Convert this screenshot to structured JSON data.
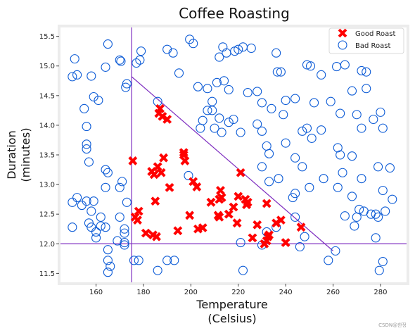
{
  "chart_data": {
    "type": "scatter",
    "title": "Coffee Roasting",
    "xlabel_lines": [
      "Temperature",
      "(Celsius)"
    ],
    "ylabel_lines": [
      "Duration",
      "(minutes)"
    ],
    "xlim": [
      145,
      291
    ],
    "ylim": [
      11.35,
      15.65
    ],
    "xticks": [
      160,
      180,
      200,
      220,
      240,
      260,
      280
    ],
    "yticks": [
      11.5,
      12.0,
      12.5,
      13.0,
      13.5,
      14.0,
      14.5,
      15.0,
      15.5
    ],
    "ytick_labels": [
      "11.5",
      "12.0",
      "12.5",
      "13.0",
      "13.5",
      "14.0",
      "14.5",
      "15.0",
      "15.5"
    ],
    "legend_position": "top-right",
    "grid": false,
    "colors": {
      "good": "#ff0000",
      "bad": "#0c5bd6",
      "lines": "#7f2fc0",
      "frame": "#ececec"
    },
    "reference_lines": [
      {
        "orientation": "vertical",
        "x": 175
      },
      {
        "orientation": "horizontal",
        "y": 12.0
      },
      {
        "orientation": "diagonal",
        "from": [
          175,
          14.82
        ],
        "to": [
          260,
          11.88
        ]
      }
    ],
    "series": [
      {
        "name": "Good Roast",
        "marker": "x",
        "points": [
          [
            175.5,
            13.4
          ],
          [
            186.5,
            14.2
          ],
          [
            187,
            14.28
          ],
          [
            188,
            14.15
          ],
          [
            190,
            14.1
          ],
          [
            178,
            12.55
          ],
          [
            176.5,
            12.45
          ],
          [
            177.5,
            12.4
          ],
          [
            185,
            12.72
          ],
          [
            188.5,
            13.45
          ],
          [
            183.5,
            13.22
          ],
          [
            184.5,
            13.17
          ],
          [
            187.5,
            13.2
          ],
          [
            186,
            13.3
          ],
          [
            191,
            12.95
          ],
          [
            184,
            12.15
          ],
          [
            185.5,
            12.12
          ],
          [
            181,
            12.18
          ],
          [
            194.5,
            12.22
          ],
          [
            197,
            13.5
          ],
          [
            197,
            13.54
          ],
          [
            197.5,
            13.4
          ],
          [
            199.5,
            12.48
          ],
          [
            201,
            13.05
          ],
          [
            202.5,
            12.96
          ],
          [
            203,
            12.25
          ],
          [
            205,
            12.27
          ],
          [
            208.5,
            12.7
          ],
          [
            211.5,
            12.48
          ],
          [
            212.5,
            12.9
          ],
          [
            212,
            12.75
          ],
          [
            213,
            12.78
          ],
          [
            216,
            12.5
          ],
          [
            218,
            12.62
          ],
          [
            219.5,
            12.35
          ],
          [
            220,
            12.8
          ],
          [
            221,
            13.2
          ],
          [
            223,
            12.75
          ],
          [
            224,
            12.7
          ],
          [
            226,
            12.1
          ],
          [
            228,
            12.32
          ],
          [
            231,
            12.0
          ],
          [
            232,
            12.68
          ],
          [
            232.5,
            12.12
          ],
          [
            233,
            12.15
          ],
          [
            236,
            12.35
          ],
          [
            238,
            12.4
          ],
          [
            240,
            12.02
          ],
          [
            246.5,
            12.28
          ],
          [
            212,
            12.45
          ],
          [
            223.5,
            12.66
          ],
          [
            232,
            12.05
          ]
        ]
      },
      {
        "name": "Bad Roast",
        "marker": "o",
        "points": [
          [
            151,
            15.12
          ],
          [
            150,
            14.82
          ],
          [
            152,
            14.85
          ],
          [
            155,
            14.28
          ],
          [
            158,
            14.83
          ],
          [
            165,
            15.37
          ],
          [
            170.5,
            15.08
          ],
          [
            172.5,
            14.64
          ],
          [
            173,
            14.7
          ],
          [
            177,
            15.05
          ],
          [
            178.5,
            15.1
          ],
          [
            179,
            15.25
          ],
          [
            190,
            15.28
          ],
          [
            192.5,
            15.22
          ],
          [
            199.5,
            15.45
          ],
          [
            201,
            15.38
          ],
          [
            212,
            15.15
          ],
          [
            213.5,
            15.32
          ],
          [
            215,
            15.22
          ],
          [
            218.5,
            15.25
          ],
          [
            220,
            15.28
          ],
          [
            222,
            15.32
          ],
          [
            225.5,
            15.3
          ],
          [
            236,
            15.22
          ],
          [
            236.5,
            14.9
          ],
          [
            238,
            14.9
          ],
          [
            249,
            15.02
          ],
          [
            250.5,
            15.0
          ],
          [
            261.5,
            14.99
          ],
          [
            265,
            15.02
          ],
          [
            272,
            14.92
          ],
          [
            274,
            14.9
          ],
          [
            274.5,
            15.32
          ],
          [
            261.5,
            15.35
          ],
          [
            159,
            14.48
          ],
          [
            161,
            14.42
          ],
          [
            164,
            14.98
          ],
          [
            170,
            15.1
          ],
          [
            186,
            14.4
          ],
          [
            195,
            14.88
          ],
          [
            203,
            14.65
          ],
          [
            207,
            14.62
          ],
          [
            209,
            14.4
          ],
          [
            211,
            14.72
          ],
          [
            214,
            14.75
          ],
          [
            216,
            14.6
          ],
          [
            224,
            14.55
          ],
          [
            228,
            14.57
          ],
          [
            230,
            14.38
          ],
          [
            234,
            14.28
          ],
          [
            239,
            14.18
          ],
          [
            240,
            14.42
          ],
          [
            244,
            14.45
          ],
          [
            247,
            13.9
          ],
          [
            252,
            14.38
          ],
          [
            255,
            14.85
          ],
          [
            259,
            14.4
          ],
          [
            263,
            14.2
          ],
          [
            268,
            14.58
          ],
          [
            270,
            14.18
          ],
          [
            272,
            13.95
          ],
          [
            274,
            14.62
          ],
          [
            277,
            14.1
          ],
          [
            280,
            14.22
          ],
          [
            281,
            13.95
          ],
          [
            212,
            14.12
          ],
          [
            209,
            14.25
          ],
          [
            210,
            13.95
          ],
          [
            207,
            14.25
          ],
          [
            205,
            14.08
          ],
          [
            204,
            13.95
          ],
          [
            213,
            13.88
          ],
          [
            216,
            14.05
          ],
          [
            218,
            14.1
          ],
          [
            221,
            13.88
          ],
          [
            228,
            14.02
          ],
          [
            230,
            13.9
          ],
          [
            232,
            13.65
          ],
          [
            240,
            13.7
          ],
          [
            244,
            13.45
          ],
          [
            247,
            13.3
          ],
          [
            249,
            13.95
          ],
          [
            251,
            13.78
          ],
          [
            255,
            13.92
          ],
          [
            262,
            13.62
          ],
          [
            263,
            13.5
          ],
          [
            264,
            13.2
          ],
          [
            268,
            13.48
          ],
          [
            272,
            13.1
          ],
          [
            279,
            13.3
          ],
          [
            284,
            13.28
          ],
          [
            281,
            12.9
          ],
          [
            285,
            12.75
          ],
          [
            282,
            12.55
          ],
          [
            278,
            12.5
          ],
          [
            271,
            12.58
          ],
          [
            265,
            12.47
          ],
          [
            269,
            12.3
          ],
          [
            270,
            12.45
          ],
          [
            273,
            12.55
          ],
          [
            276,
            12.5
          ],
          [
            279,
            12.45
          ],
          [
            278,
            12.1
          ],
          [
            281,
            11.7
          ],
          [
            279.5,
            11.55
          ],
          [
            268,
            12.8
          ],
          [
            262,
            12.95
          ],
          [
            256,
            13.1
          ],
          [
            250,
            12.95
          ],
          [
            244,
            12.85
          ],
          [
            237,
            13.1
          ],
          [
            233,
            13.05
          ],
          [
            230,
            13.3
          ],
          [
            233,
            13.52
          ],
          [
            243,
            12.78
          ],
          [
            236,
            12.28
          ],
          [
            232,
            12.2
          ],
          [
            230,
            11.98
          ],
          [
            244,
            12.45
          ],
          [
            246,
            11.95
          ],
          [
            248,
            12.12
          ],
          [
            258,
            11.72
          ],
          [
            261,
            11.88
          ],
          [
            222,
            11.55
          ],
          [
            221,
            12.02
          ],
          [
            190,
            11.72
          ],
          [
            193,
            11.72
          ],
          [
            186,
            11.55
          ],
          [
            178,
            11.72
          ],
          [
            176,
            11.72
          ],
          [
            172,
            11.98
          ],
          [
            172,
            12.18
          ],
          [
            172,
            12.25
          ],
          [
            170,
            12.45
          ],
          [
            173,
            12.7
          ],
          [
            170,
            12.95
          ],
          [
            171,
            13.05
          ],
          [
            164,
            13.25
          ],
          [
            164,
            12.95
          ],
          [
            162,
            12.45
          ],
          [
            164,
            12.28
          ],
          [
            160,
            12.2
          ],
          [
            158,
            12.28
          ],
          [
            157,
            12.35
          ],
          [
            158,
            12.55
          ],
          [
            159,
            12.72
          ],
          [
            156,
            12.72
          ],
          [
            154,
            12.65
          ],
          [
            152,
            12.78
          ],
          [
            150,
            12.7
          ],
          [
            150,
            12.28
          ],
          [
            156,
            13.6
          ],
          [
            156,
            13.68
          ],
          [
            157,
            13.38
          ],
          [
            156,
            13.98
          ],
          [
            165,
            13.2
          ],
          [
            165,
            11.9
          ],
          [
            165,
            11.72
          ],
          [
            165,
            11.52
          ],
          [
            166,
            11.62
          ],
          [
            160,
            12.1
          ],
          [
            162,
            12.3
          ],
          [
            169,
            12.05
          ],
          [
            172,
            12.02
          ],
          [
            199,
            13.15
          ]
        ]
      }
    ]
  }
}
